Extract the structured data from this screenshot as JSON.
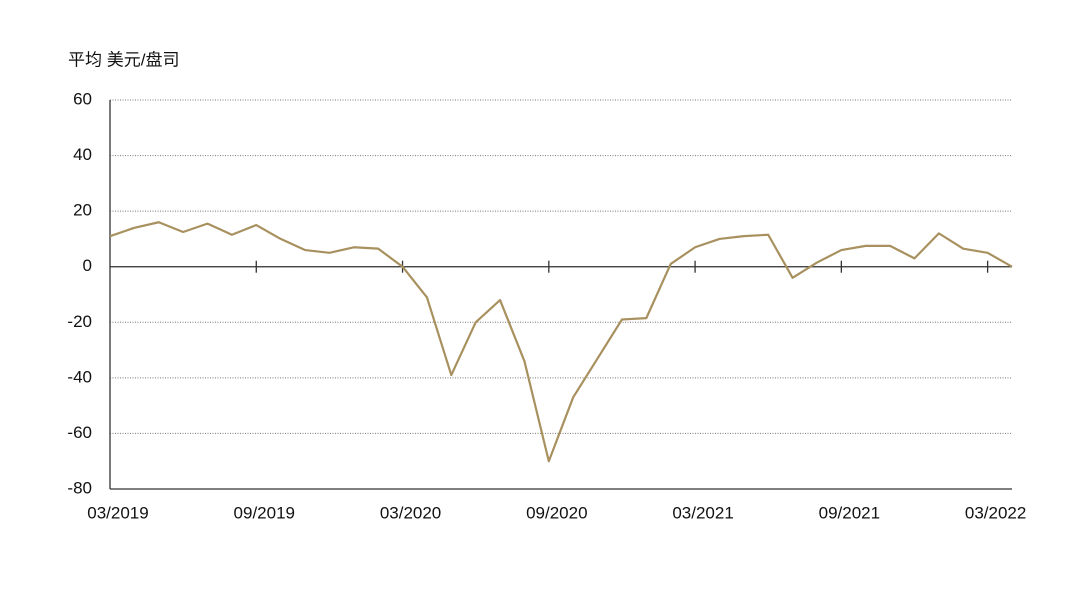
{
  "chart_data": {
    "type": "line",
    "y_label": "平均 美元/盘司",
    "categories": [
      "03/2019",
      null,
      null,
      null,
      null,
      null,
      "09/2019",
      null,
      null,
      null,
      null,
      null,
      "03/2020",
      null,
      null,
      null,
      null,
      null,
      "09/2020",
      null,
      null,
      null,
      null,
      null,
      "03/2021",
      null,
      null,
      null,
      null,
      null,
      "09/2021",
      null,
      null,
      null,
      null,
      null,
      "03/2022",
      null
    ],
    "series": [
      {
        "color": "#a8915f",
        "values": [
          11,
          14,
          16,
          12.5,
          15.5,
          11.5,
          15,
          10,
          6,
          5,
          7,
          6.5,
          0,
          -11,
          -39,
          -20,
          -12,
          -34,
          -70,
          -47,
          -33,
          -19,
          -18.5,
          1,
          7,
          10,
          11,
          11.5,
          -4,
          1.5,
          6,
          7.5,
          7.5,
          3,
          12,
          6.5,
          5,
          0
        ]
      }
    ],
    "ylim": [
      -80,
      60
    ],
    "yticks": [
      -80,
      -60,
      -40,
      -20,
      0,
      20,
      40,
      60
    ],
    "grid": true
  }
}
